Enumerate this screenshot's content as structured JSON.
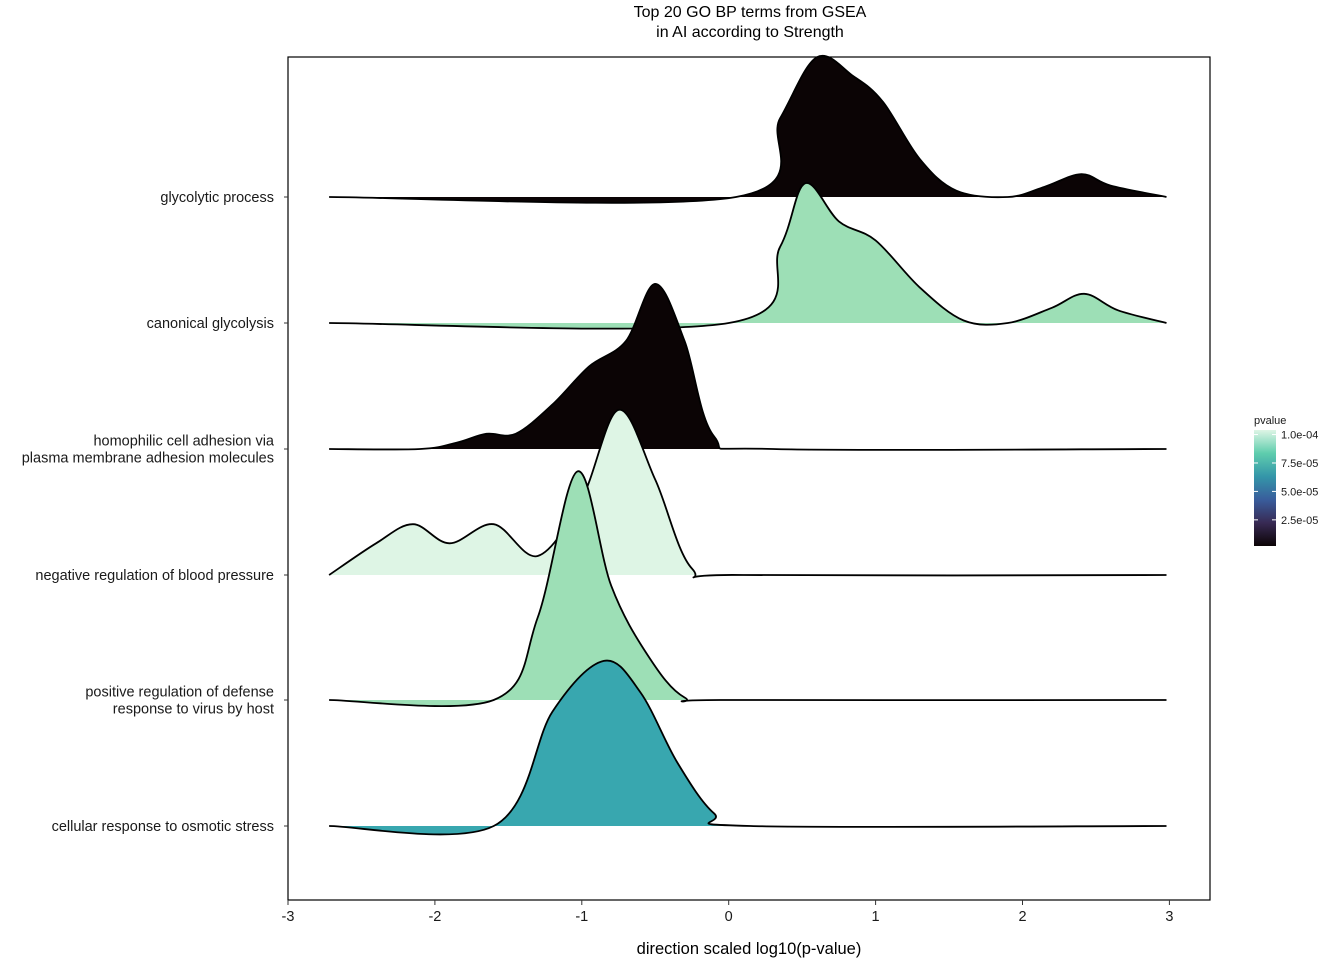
{
  "chart_data": {
    "type": "ridgeline",
    "title": "Top 20 GO BP terms from GSEA",
    "subtitle": "in AI according to Strength",
    "xlabel": "direction scaled log10(p-value)",
    "ylabel": "",
    "xlim": [
      -3,
      3.25
    ],
    "x_ticks": [
      "-3",
      "-2",
      "-1",
      "0",
      "1",
      "2",
      "3"
    ],
    "x_tick_values": [
      -3,
      -2,
      -1,
      0,
      1,
      2,
      3
    ],
    "grid": false,
    "legend_position": "right",
    "series": [
      {
        "name": "glycolytic process",
        "color": "#0b0405",
        "x": [
          -2.72,
          0.05,
          0.35,
          0.6,
          0.85,
          1.05,
          1.3,
          1.55,
          1.9,
          2.15,
          2.4,
          2.6,
          2.98
        ],
        "y": [
          0,
          0,
          0.62,
          1.1,
          0.95,
          0.75,
          0.3,
          0.05,
          0,
          0.08,
          0.18,
          0.09,
          0
        ]
      },
      {
        "name": "canonical glycolysis",
        "color": "#9ddfb6",
        "x": [
          -2.72,
          0.0,
          0.35,
          0.52,
          0.75,
          1.0,
          1.3,
          1.6,
          1.9,
          2.2,
          2.42,
          2.65,
          2.98
        ],
        "y": [
          0,
          0,
          0.6,
          1.1,
          0.8,
          0.65,
          0.28,
          0.02,
          0,
          0.12,
          0.23,
          0.1,
          0
        ]
      },
      {
        "name": "homophilic cell adhesion via\nplasma membrane adhesion molecules",
        "color": "#0b0405",
        "x": [
          -2.72,
          -2.1,
          -1.85,
          -1.65,
          -1.45,
          -1.2,
          -0.95,
          -0.7,
          -0.5,
          -0.3,
          -0.1,
          0.3,
          2.98
        ],
        "y": [
          0,
          0,
          0.05,
          0.12,
          0.12,
          0.35,
          0.65,
          0.85,
          1.3,
          0.85,
          0.1,
          0,
          0
        ]
      },
      {
        "name": "negative regulation of blood pressure",
        "color": "#def5e5",
        "x": [
          -2.72,
          -2.4,
          -2.15,
          -1.9,
          -1.6,
          -1.3,
          -1.0,
          -0.75,
          -0.5,
          -0.25,
          0.1,
          2.98
        ],
        "y": [
          0,
          0.25,
          0.4,
          0.25,
          0.4,
          0.15,
          0.6,
          1.3,
          0.75,
          0.05,
          0,
          0
        ]
      },
      {
        "name": "positive regulation of defense\nresponse to virus by host",
        "color": "#9ddfb6",
        "x": [
          -2.72,
          -1.6,
          -1.3,
          -1.03,
          -0.8,
          -0.55,
          -0.3,
          0.0,
          2.98
        ],
        "y": [
          0,
          0,
          0.65,
          1.8,
          0.9,
          0.35,
          0.02,
          0,
          0
        ]
      },
      {
        "name": "cellular response to osmotic stress",
        "color": "#38a7af",
        "x": [
          -2.72,
          -1.6,
          -1.2,
          -0.85,
          -0.6,
          -0.35,
          -0.1,
          0.15,
          2.98
        ],
        "y": [
          0,
          0,
          0.9,
          1.3,
          1.05,
          0.5,
          0.1,
          0,
          0
        ]
      }
    ],
    "legend": {
      "title": "pvalue",
      "labels": [
        "1.0e-04",
        "7.5e-05",
        "5.0e-05",
        "2.5e-05"
      ],
      "values": [
        0.0001,
        7.5e-05,
        5e-05,
        2.5e-05
      ],
      "range": [
        2e-06,
        0.000104
      ],
      "colors": [
        "#0b0405",
        "#382a54",
        "#395d9c",
        "#3496a9",
        "#5fcdad",
        "#def5e5"
      ]
    }
  }
}
